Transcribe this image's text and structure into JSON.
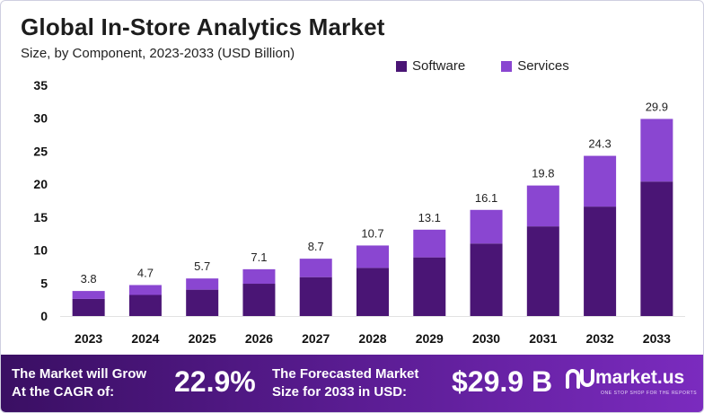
{
  "header": {
    "title": "Global In-Store Analytics Market",
    "subtitle": "Size, by Component, 2023-2033 (USD Billion)"
  },
  "legend": [
    {
      "label": "Software",
      "color": "#4a1575"
    },
    {
      "label": "Services",
      "color": "#8a46d1"
    }
  ],
  "chart_data": {
    "type": "bar",
    "stacked": true,
    "categories": [
      "2023",
      "2024",
      "2025",
      "2026",
      "2027",
      "2028",
      "2029",
      "2030",
      "2031",
      "2032",
      "2033"
    ],
    "series": [
      {
        "name": "Software",
        "values": [
          2.6,
          3.2,
          4.0,
          4.9,
          5.9,
          7.3,
          8.9,
          11.0,
          13.6,
          16.6,
          20.4
        ],
        "color": "#4a1575"
      },
      {
        "name": "Services",
        "values": [
          1.2,
          1.5,
          1.7,
          2.2,
          2.8,
          3.4,
          4.2,
          5.1,
          6.2,
          7.7,
          9.5
        ],
        "color": "#8a46d1"
      }
    ],
    "totals": [
      "3.8",
      "4.7",
      "5.7",
      "7.1",
      "8.7",
      "10.7",
      "13.1",
      "16.1",
      "19.8",
      "24.3",
      "29.9"
    ],
    "yticks": [
      0,
      5,
      10,
      15,
      20,
      25,
      30,
      35
    ],
    "ylim": [
      0,
      35
    ],
    "grid": false,
    "legend_position": "top-right"
  },
  "footer": {
    "cagr_label_line1": "The Market will Grow",
    "cagr_label_line2": "At the CAGR of:",
    "cagr_value": "22.9%",
    "forecast_label_line1": "The Forecasted Market",
    "forecast_label_line2": "Size for 2033 in USD:",
    "forecast_value": "$29.9 B",
    "brand_name": "market.us",
    "brand_tagline": "ONE STOP SHOP FOR THE REPORTS",
    "brand_icon": "market-us-logo-icon"
  }
}
